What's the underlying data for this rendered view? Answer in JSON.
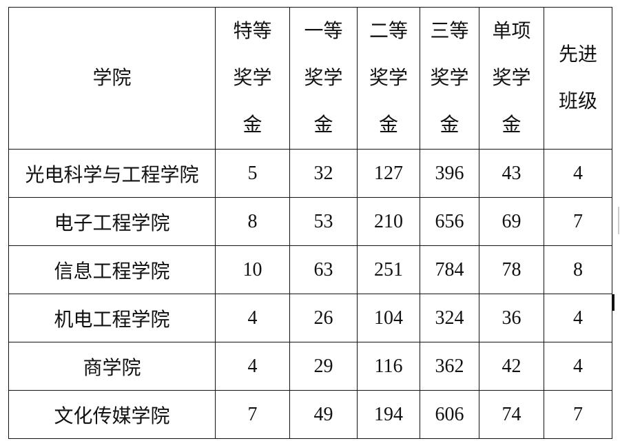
{
  "table": {
    "headers": [
      {
        "lines": [
          "学院"
        ]
      },
      {
        "lines": [
          "特等",
          "奖学",
          "金"
        ]
      },
      {
        "lines": [
          "一等",
          "奖学",
          "金"
        ]
      },
      {
        "lines": [
          "二等",
          "奖学",
          "金"
        ]
      },
      {
        "lines": [
          "三等",
          "奖学",
          "金"
        ]
      },
      {
        "lines": [
          "单项",
          "奖学",
          "金"
        ]
      },
      {
        "lines": [
          "先进",
          "班级"
        ]
      }
    ],
    "rows": [
      [
        "光电科学与工程学院",
        "5",
        "32",
        "127",
        "396",
        "43",
        "4"
      ],
      [
        "电子工程学院",
        "8",
        "53",
        "210",
        "656",
        "69",
        "7"
      ],
      [
        "信息工程学院",
        "10",
        "63",
        "251",
        "784",
        "78",
        "8"
      ],
      [
        "机电工程学院",
        "4",
        "26",
        "104",
        "324",
        "36",
        "4"
      ],
      [
        "商学院",
        "4",
        "29",
        "116",
        "362",
        "42",
        "4"
      ],
      [
        "文化传媒学院",
        "7",
        "49",
        "194",
        "606",
        "74",
        "7"
      ]
    ]
  }
}
